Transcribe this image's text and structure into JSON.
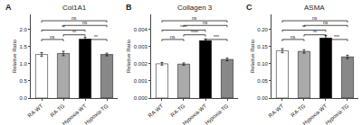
{
  "chart_data": [
    {
      "type": "bar",
      "title": "Col1A1",
      "ylabel": "Relative Ratio",
      "categories": [
        "RA-WT",
        "RA-TG",
        "Hypoxia-WT",
        "Hypoxia-TG"
      ],
      "values": [
        1.27,
        1.3,
        1.72,
        1.27
      ],
      "errors": [
        0.055,
        0.065,
        0.05,
        0.04
      ],
      "colors": [
        "white",
        "#aaaaaa",
        "black",
        "#888888"
      ],
      "ylim": [
        0.0,
        2.44
      ],
      "yticks": [
        {
          "value": 0.0,
          "label": "0.0"
        },
        0.5,
        {
          "value": 1.0,
          "label": "1.0"
        },
        1.5,
        {
          "value": 2.0,
          "label": "2.0"
        }
      ],
      "grid": false,
      "annotations": [
        {
          "text": "A"
        },
        {
          "text": "ns",
          "bars": [
            0,
            1
          ]
        },
        {
          "text": "**",
          "bars": [
            0,
            2
          ]
        },
        {
          "text": "**",
          "bars": [
            1,
            2
          ]
        },
        {
          "text": "**",
          "bars": [
            2,
            3
          ]
        },
        {
          "text": "ns",
          "bars": [
            0,
            3
          ]
        },
        {
          "text": "ns",
          "bars": [
            1,
            3
          ]
        }
      ]
    },
    {
      "type": "bar",
      "title": "Collagen 3",
      "ylabel": "Relative Ratio",
      "categories": [
        "RA-WT",
        "RA-TG",
        "Hypoxia-WT",
        "Hypoxia-TG"
      ],
      "values": [
        0.002,
        0.00198,
        0.00335,
        0.00225
      ],
      "errors": [
        8e-05,
        7e-05,
        0.0001,
        8e-05
      ],
      "colors": [
        "white",
        "#aaaaaa",
        "black",
        "#888888"
      ],
      "ylim": [
        0.0,
        0.00488
      ],
      "yticks": [
        {
          "value": 0.0,
          "label": "0.000"
        },
        0.001,
        0.002,
        0.003,
        0.004
      ],
      "grid": false,
      "annotations": [
        {
          "text": "B"
        },
        {
          "text": "ns",
          "bars": [
            0,
            1
          ]
        },
        {
          "text": "****",
          "bars": [
            0,
            2
          ]
        },
        {
          "text": "****",
          "bars": [
            1,
            2
          ]
        },
        {
          "text": "***",
          "bars": [
            2,
            3
          ]
        },
        {
          "text": "ns",
          "bars": [
            0,
            3
          ]
        },
        {
          "text": "ns",
          "bars": [
            1,
            3
          ]
        }
      ]
    },
    {
      "type": "bar",
      "title": "ASMA",
      "ylabel": "Relative Ratio",
      "categories": [
        "RA-WT",
        "RA-TG",
        "Hypoxia-WT",
        "Hypoxia-TG"
      ],
      "values": [
        0.138,
        0.136,
        0.175,
        0.12
      ],
      "errors": [
        0.006,
        0.005,
        0.007,
        0.005
      ],
      "colors": [
        "white",
        "#aaaaaa",
        "black",
        "#888888"
      ],
      "ylim": [
        0.0,
        0.244
      ],
      "yticks": [
        {
          "value": 0.0,
          "label": "0.00"
        },
        0.05,
        {
          "value": 0.1,
          "label": "0.10"
        },
        0.15,
        {
          "value": 0.2,
          "label": "0.20"
        }
      ],
      "grid": false,
      "annotations": [
        {
          "text": "C"
        },
        {
          "text": "ns",
          "bars": [
            0,
            1
          ]
        },
        {
          "text": "**",
          "bars": [
            0,
            2
          ]
        },
        {
          "text": "**",
          "bars": [
            1,
            2
          ]
        },
        {
          "text": "***",
          "bars": [
            2,
            3
          ]
        },
        {
          "text": "ns",
          "bars": [
            0,
            3
          ]
        },
        {
          "text": "ns",
          "bars": [
            1,
            3
          ]
        }
      ]
    }
  ]
}
